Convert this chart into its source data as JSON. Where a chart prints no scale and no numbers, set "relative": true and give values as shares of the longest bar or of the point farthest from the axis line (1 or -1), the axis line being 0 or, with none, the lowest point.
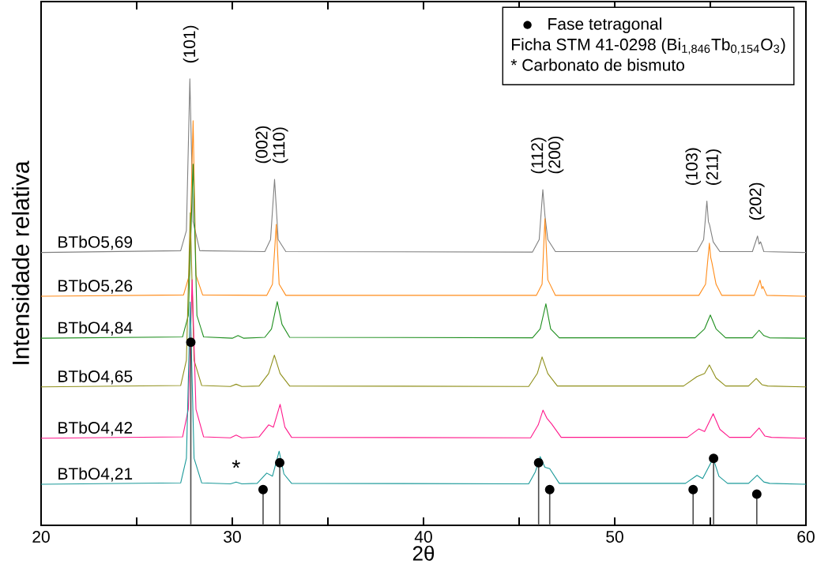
{
  "chart_data": {
    "type": "line",
    "xlabel": "2θ",
    "ylabel": "Intensidade relativa",
    "relative": true,
    "xlim": [
      20,
      60
    ],
    "xticks": [
      20,
      {
        "value": 25,
        "label": null
      },
      30,
      {
        "value": 35,
        "label": null
      },
      40,
      {
        "value": 45,
        "label": null
      },
      50,
      {
        "value": 55,
        "label": null
      },
      60
    ],
    "tick_labels": "x",
    "legend": "top right",
    "annotations": [
      "(101)",
      "(002)",
      "(110)",
      "(112)",
      "(200)",
      "(103)",
      "(211)",
      "(202)",
      "Ficha STM 41-0298 (Bi$_{1,846}$Tb$_{0,154}$O$_{3}$)",
      "* Carbonato de bismuto",
      {
        "text": "*",
        "x": 30.2,
        "y": 0.097
      }
    ],
    "series": [
      {
        "name": "BTbO5,69",
        "color": "#808080",
        "x": [
          20,
          27.3,
          27.6,
          27.78,
          27.95,
          28.3,
          31.7,
          32.0,
          32.21,
          32.4,
          32.8,
          45.7,
          46.05,
          46.24,
          46.35,
          46.5,
          46.9,
          54.3,
          54.65,
          54.82,
          54.9,
          54.96,
          55.15,
          55.5,
          57.2,
          57.47,
          57.55,
          57.63,
          57.8,
          60
        ],
        "values": [
          0.611,
          0.615,
          0.66,
          1.0,
          0.68,
          0.615,
          0.613,
          0.64,
          0.775,
          0.64,
          0.613,
          0.612,
          0.64,
          0.752,
          0.694,
          0.64,
          0.613,
          0.613,
          0.64,
          0.726,
          0.68,
          0.673,
          0.635,
          0.613,
          0.613,
          0.648,
          0.63,
          0.635,
          0.613,
          0.611
        ]
      },
      {
        "name": "BTbO5,26",
        "color": "#ff8c1a",
        "x": [
          20,
          27.45,
          27.75,
          27.95,
          28.1,
          28.45,
          31.8,
          32.1,
          32.3,
          32.45,
          32.8,
          45.9,
          46.2,
          46.35,
          46.5,
          46.9,
          54.4,
          54.75,
          54.95,
          55.02,
          55.08,
          55.3,
          55.6,
          57.3,
          57.6,
          57.7,
          57.75,
          57.95,
          60
        ],
        "values": [
          0.513,
          0.516,
          0.56,
          0.906,
          0.56,
          0.516,
          0.515,
          0.54,
          0.674,
          0.54,
          0.515,
          0.515,
          0.54,
          0.687,
          0.55,
          0.515,
          0.515,
          0.54,
          0.632,
          0.6,
          0.589,
          0.54,
          0.515,
          0.515,
          0.549,
          0.53,
          0.535,
          0.515,
          0.513
        ]
      },
      {
        "name": "BTbO4,84",
        "color": "#1f8f1f",
        "x": [
          20,
          27.4,
          27.7,
          27.95,
          28.15,
          28.5,
          30.0,
          30.3,
          30.6,
          31.7,
          32.05,
          32.35,
          32.6,
          33.0,
          45.7,
          46.1,
          46.4,
          46.65,
          47.1,
          54.2,
          54.7,
          55.0,
          55.3,
          55.8,
          57.2,
          57.55,
          57.8,
          58.1,
          60
        ],
        "values": [
          0.419,
          0.422,
          0.47,
          0.809,
          0.47,
          0.422,
          0.419,
          0.425,
          0.419,
          0.421,
          0.44,
          0.501,
          0.45,
          0.421,
          0.42,
          0.44,
          0.496,
          0.44,
          0.42,
          0.42,
          0.44,
          0.471,
          0.44,
          0.42,
          0.42,
          0.437,
          0.425,
          0.42,
          0.419
        ]
      },
      {
        "name": "BTbO4,65",
        "color": "#8f8f1a",
        "x": [
          20,
          27.3,
          27.6,
          27.8,
          28.0,
          28.4,
          29.9,
          30.2,
          30.5,
          31.4,
          31.9,
          32.2,
          32.5,
          33.0,
          45.5,
          45.95,
          46.2,
          46.5,
          47.0,
          53.6,
          54.3,
          54.7,
          54.95,
          55.3,
          55.8,
          57.0,
          57.4,
          57.7,
          58.0,
          60
        ],
        "values": [
          0.31,
          0.313,
          0.37,
          0.7,
          0.37,
          0.313,
          0.311,
          0.316,
          0.311,
          0.312,
          0.34,
          0.381,
          0.34,
          0.312,
          0.311,
          0.34,
          0.377,
          0.34,
          0.312,
          0.312,
          0.333,
          0.34,
          0.359,
          0.33,
          0.312,
          0.312,
          0.329,
          0.315,
          0.312,
          0.31
        ]
      },
      {
        "name": "BTbO4,42",
        "color": "#ff1a8c",
        "x": [
          20,
          27.4,
          27.7,
          27.9,
          28.1,
          28.5,
          29.9,
          30.2,
          30.5,
          31.4,
          31.9,
          32.15,
          32.5,
          32.75,
          33.1,
          45.6,
          46.0,
          46.25,
          46.45,
          46.7,
          47.2,
          53.8,
          54.4,
          54.7,
          55.15,
          55.5,
          56.0,
          57.1,
          57.55,
          57.85,
          58.2,
          60
        ],
        "values": [
          0.195,
          0.198,
          0.26,
          0.55,
          0.26,
          0.198,
          0.196,
          0.202,
          0.196,
          0.198,
          0.225,
          0.22,
          0.271,
          0.22,
          0.197,
          0.196,
          0.225,
          0.258,
          0.24,
          0.227,
          0.197,
          0.197,
          0.216,
          0.21,
          0.25,
          0.215,
          0.197,
          0.197,
          0.218,
          0.2,
          0.197,
          0.195
        ]
      },
      {
        "name": "BTbO4,21",
        "color": "#1a9999",
        "x": [
          20,
          27.3,
          27.6,
          27.8,
          28.0,
          28.4,
          29.9,
          30.2,
          30.5,
          31.3,
          31.8,
          32.1,
          32.45,
          32.7,
          33.1,
          45.5,
          45.85,
          46.1,
          46.35,
          46.6,
          47.1,
          53.7,
          54.3,
          54.6,
          55.15,
          55.45,
          55.9,
          57.0,
          57.45,
          57.8,
          58.1,
          60
        ],
        "values": [
          0.092,
          0.095,
          0.15,
          0.5,
          0.15,
          0.095,
          0.093,
          0.097,
          0.093,
          0.094,
          0.117,
          0.11,
          0.166,
          0.115,
          0.094,
          0.093,
          0.12,
          0.154,
          0.13,
          0.127,
          0.094,
          0.094,
          0.112,
          0.105,
          0.15,
          0.11,
          0.094,
          0.094,
          0.112,
          0.097,
          0.094,
          0.092
        ]
      },
      {
        "type": "lollipop",
        "name": "Fase tetragonal",
        "color": "#000000",
        "marker": "circle",
        "x": [
          27.83,
          31.61,
          32.48,
          46.02,
          46.6,
          54.1,
          55.17,
          57.43
        ],
        "values": [
          0.41,
          0.08,
          0.14,
          0.14,
          0.08,
          0.08,
          0.15,
          0.07
        ]
      }
    ]
  }
}
